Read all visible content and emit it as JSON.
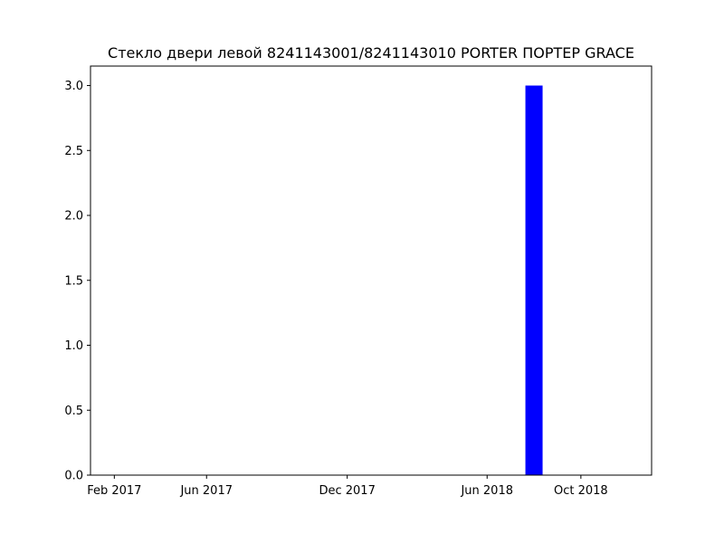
{
  "chart_data": {
    "type": "bar",
    "title": "Стекло двери левой 8241143001/8241143010 PORTER ПОРТЕР GRACE",
    "xlabel": "",
    "ylabel": "",
    "x_axis": {
      "type": "date",
      "tick_labels": [
        "Feb 2017",
        "Jun 2017",
        "Dec 2017",
        "Jun 2018",
        "Oct 2018"
      ]
    },
    "y_axis": {
      "ylim": [
        0,
        3.15
      ],
      "tick_labels": [
        "0.0",
        "0.5",
        "1.0",
        "1.5",
        "2.0",
        "2.5",
        "3.0"
      ]
    },
    "series": [
      {
        "color": "#0000ff",
        "points": [
          {
            "x": "2018-08",
            "y": 3
          }
        ]
      }
    ],
    "grid": false,
    "legend": "none"
  }
}
